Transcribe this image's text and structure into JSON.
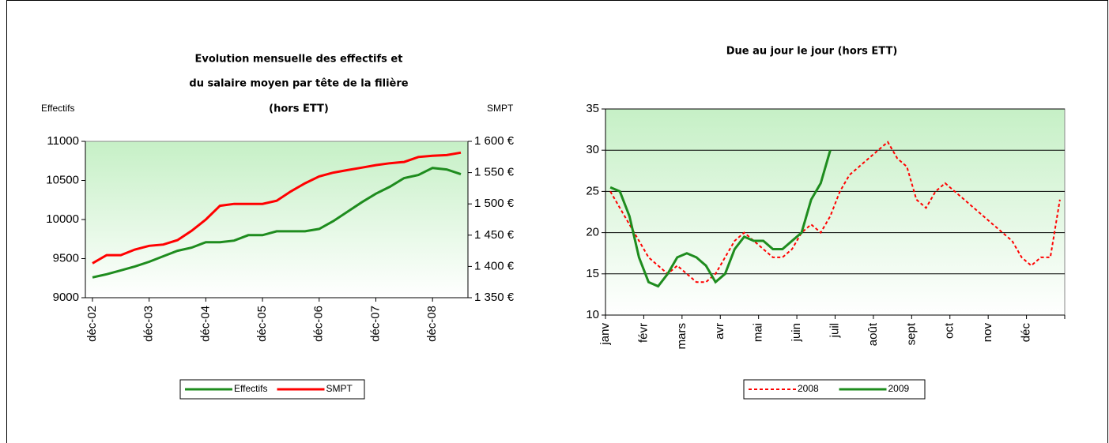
{
  "chart_data": [
    {
      "type": "line",
      "title": [
        "Evolution mensuelle des effectifs et",
        "du salaire moyen par tête de la filière",
        "(hors ETT)"
      ],
      "ylabel": "Effectifs",
      "y2label": "SMPT",
      "categories": [
        "déc-02",
        null,
        null,
        null,
        "déc-03",
        null,
        null,
        null,
        "déc-04",
        null,
        null,
        null,
        "déc-05",
        null,
        null,
        null,
        "déc-06",
        null,
        null,
        null,
        "déc-07",
        null,
        null,
        null,
        "déc-08",
        null,
        null
      ],
      "series": [
        {
          "name": "Effectifs",
          "color": "#1e8c1e",
          "style": "solid",
          "values": [
            9260,
            9300,
            9350,
            9400,
            9460,
            9530,
            9600,
            9640,
            9710,
            9710,
            9730,
            9800,
            9800,
            9850,
            9850,
            9850,
            9880,
            9980,
            10100,
            10220,
            10330,
            10420,
            10530,
            10570,
            10660,
            10640,
            10580
          ]
        },
        {
          "name": "SMPT",
          "color": "#ff0000",
          "style": "solid",
          "axis": "y2",
          "values": [
            1405,
            1418,
            1418,
            1427,
            1433,
            1435,
            1442,
            1457,
            1475,
            1497,
            1500,
            1500,
            1500,
            1505,
            1520,
            1533,
            1544,
            1550,
            1554,
            1558,
            1562,
            1565,
            1567,
            1575,
            1577,
            1578,
            1582
          ]
        }
      ],
      "ylim": [
        9000,
        11000
      ],
      "yticks": [
        9000,
        9500,
        10000,
        10500,
        11000
      ],
      "y2lim": [
        1350,
        1600
      ],
      "y2ticks": [
        {
          "value": 1350,
          "label": "1 350 €"
        },
        {
          "value": 1400,
          "label": "1 400 €"
        },
        {
          "value": 1450,
          "label": "1 450 €"
        },
        {
          "value": 1500,
          "label": "1 500 €"
        },
        {
          "value": 1550,
          "label": "1 550 €"
        },
        {
          "value": 1600,
          "label": "1 600 €"
        }
      ],
      "grid": false,
      "legend": "bottom"
    },
    {
      "type": "line",
      "title": [
        "Due au jour le jour (hors ETT)"
      ],
      "categories": [
        "janv",
        null,
        null,
        null,
        "févr",
        null,
        null,
        null,
        "mars",
        null,
        null,
        null,
        "avr",
        null,
        null,
        null,
        "mai",
        null,
        null,
        null,
        "juin",
        null,
        null,
        null,
        "juil",
        null,
        null,
        null,
        "août",
        null,
        null,
        null,
        "sept",
        null,
        null,
        null,
        "oct",
        null,
        null,
        null,
        "nov",
        null,
        null,
        null,
        "déc",
        null,
        null,
        null
      ],
      "series": [
        {
          "name": "2008",
          "color": "#ff0000",
          "style": "dashed",
          "values": [
            25,
            23,
            21,
            19,
            17,
            16,
            15,
            16,
            15,
            14,
            14,
            15,
            17,
            19,
            20,
            19,
            18,
            17,
            17,
            18,
            20,
            21,
            20,
            22,
            25,
            27,
            28,
            29,
            30,
            31,
            29,
            28,
            24,
            23,
            25,
            26,
            25,
            24,
            23,
            22,
            21,
            20,
            19,
            17,
            16,
            17,
            17,
            24
          ]
        },
        {
          "name": "2009",
          "color": "#1e8c1e",
          "style": "solid",
          "values": [
            25.5,
            25,
            22,
            17,
            14,
            13.5,
            15,
            17,
            17.5,
            17,
            16,
            14,
            15,
            18,
            19.5,
            19,
            19,
            18,
            18,
            19,
            20,
            24,
            26,
            30,
            null,
            null,
            null,
            null,
            null,
            null,
            null,
            null,
            null,
            null,
            null,
            null,
            null,
            null,
            null,
            null,
            null,
            null,
            null,
            null,
            null,
            null,
            null,
            null
          ]
        }
      ],
      "ylim": [
        10,
        35
      ],
      "yticks": [
        10,
        15,
        20,
        25,
        30,
        35
      ],
      "grid": true,
      "legend": "bottom"
    }
  ]
}
